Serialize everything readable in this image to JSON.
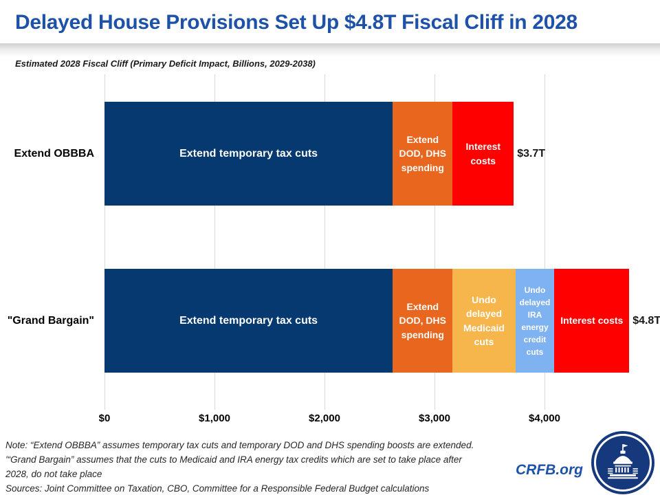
{
  "chart_data": {
    "type": "bar",
    "orientation": "horizontal",
    "stacked": true,
    "title": "Delayed House Provisions Set Up $4.8T Fiscal Cliff in 2028",
    "subtitle": "Estimated 2028 Fiscal Cliff (Primary Deficit Impact, Billions, 2029-2038)",
    "units": "billions of dollars, primary deficit impact 2029-2038",
    "xlim": [
      0,
      5000
    ],
    "grid": true,
    "x_ticks": [
      {
        "label": "$0",
        "value": 0
      },
      {
        "label": "$1,000",
        "value": 1000
      },
      {
        "label": "$2,000",
        "value": 2000
      },
      {
        "label": "$3,000",
        "value": 3000
      },
      {
        "label": "$4,000",
        "value": 4000
      }
    ],
    "categories": [
      "Extend OBBBA",
      "\"Grand Bargain\""
    ],
    "bars": [
      {
        "category": "Extend OBBBA",
        "total": 3720,
        "total_label": "$3.7T",
        "segments": [
          {
            "label": "Extend temporary tax cuts",
            "value": 2620,
            "color": "#053970"
          },
          {
            "label": "Extend DOD, DHS spending",
            "value": 545,
            "color": "#E8661D"
          },
          {
            "label": "Interest costs",
            "value": 555,
            "color": "#FF0000"
          }
        ]
      },
      {
        "category": "\"Grand Bargain\"",
        "total": 4770,
        "total_label": "$4.8T",
        "segments": [
          {
            "label": "Extend temporary tax cuts",
            "value": 2620,
            "color": "#053970"
          },
          {
            "label": "Extend DOD, DHS spending",
            "value": 545,
            "color": "#E8661D"
          },
          {
            "label": "Undo delayed Medicaid cuts",
            "value": 570,
            "color": "#F6B64C"
          },
          {
            "label": "Undo delayed IRA energy credit cuts",
            "value": 355,
            "color": "#7EB2F0"
          },
          {
            "label": "Interest costs",
            "value": 680,
            "color": "#FF0000"
          }
        ]
      }
    ]
  },
  "footer": {
    "notes": [
      "Note: “Extend OBBBA” assumes temporary tax cuts and temporary DOD and DHS spending boosts are extended.",
      "'“Grand Bargain” assumes that the cuts to Medicaid and IRA energy tax credits which are set to take place after",
      "2028, do not take place",
      "Sources: Joint Committee on Taxation, CBO, Committee for a Responsible Federal Budget calculations"
    ],
    "brand": "CRFB.org"
  },
  "colors": {
    "title_blue": "#1D52A8",
    "navy": "#053970",
    "orange": "#E8661D",
    "gold": "#F6B64C",
    "light_blue": "#7EB2F0",
    "red": "#FF0000",
    "gridline": "#D9D9D9"
  }
}
